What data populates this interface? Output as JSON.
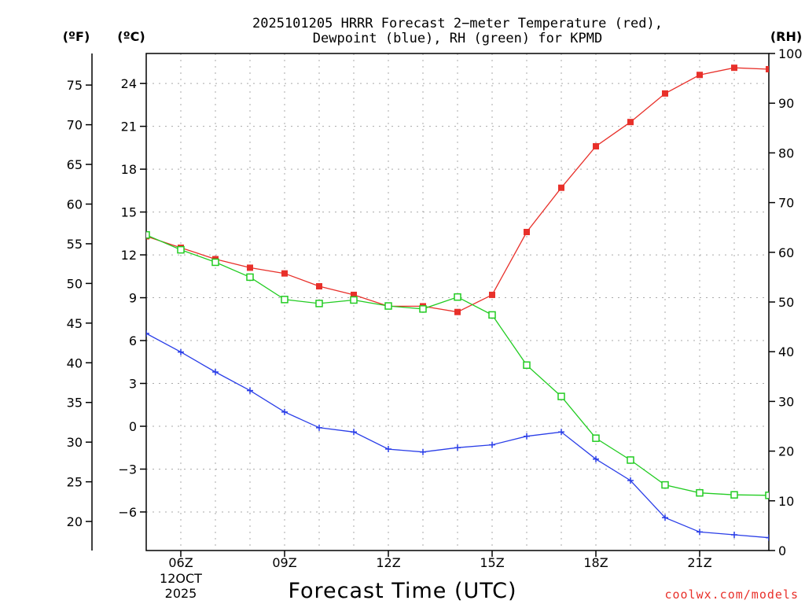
{
  "title_line1": "2025101205 HRRR Forecast 2−meter Temperature (red),",
  "title_line2": "Dewpoint (blue), RH (green) for KPMD",
  "units": {
    "f": "(ºF)",
    "c": "(ºC)",
    "rh": "(RH)"
  },
  "xlabel": "Forecast Time (UTC)",
  "credit": "coolwx.com/models",
  "colors": {
    "temperature": "#e8302a",
    "dewpoint": "#2a3ee8",
    "rh": "#22cc22",
    "axis": "#000000",
    "grid": "#aaaaaa"
  },
  "chart_data": {
    "type": "line",
    "x": [
      5,
      6,
      7,
      8,
      9,
      10,
      11,
      12,
      13,
      14,
      15,
      16,
      17,
      18,
      19,
      20,
      21,
      22,
      23
    ],
    "xlim": [
      5,
      23
    ],
    "x_ticks": [
      {
        "x": 6,
        "label": "06Z",
        "sub1": "12OCT",
        "sub2": "2025"
      },
      {
        "x": 9,
        "label": "09Z"
      },
      {
        "x": 12,
        "label": "12Z"
      },
      {
        "x": 15,
        "label": "15Z"
      },
      {
        "x": 18,
        "label": "18Z"
      },
      {
        "x": 21,
        "label": "21Z"
      }
    ],
    "ylim_c": [
      -8.7,
      26.1
    ],
    "c_ticks": [
      24,
      21,
      18,
      15,
      12,
      9,
      6,
      3,
      0,
      -3,
      -6
    ],
    "c_tick_labels": [
      "24",
      "21",
      "18",
      "15",
      "12",
      "9",
      "6",
      "3",
      "0",
      "−3",
      "−6"
    ],
    "f_ticks": [
      75,
      70,
      65,
      60,
      55,
      50,
      45,
      40,
      35,
      30,
      25,
      20
    ],
    "f_tick_labels": [
      "75",
      "70",
      "65",
      "60",
      "55",
      "50",
      "45",
      "40",
      "35",
      "30",
      "25",
      "20"
    ],
    "ylim_rh": [
      0,
      100
    ],
    "rh_ticks": [
      100,
      90,
      80,
      70,
      60,
      50,
      40,
      30,
      20,
      10,
      0
    ],
    "rh_tick_labels": [
      "100",
      "90",
      "80",
      "70",
      "60",
      "50",
      "40",
      "30",
      "20",
      "10",
      "0"
    ],
    "series": [
      {
        "name": "Temperature",
        "unit": "C",
        "marker": "filled-square",
        "values": [
          13.3,
          12.5,
          11.7,
          11.1,
          10.7,
          9.8,
          9.2,
          8.4,
          8.4,
          8.0,
          9.2,
          13.6,
          16.7,
          19.6,
          21.3,
          23.3,
          24.6,
          25.1,
          25.0
        ]
      },
      {
        "name": "Dewpoint",
        "unit": "C",
        "marker": "plus",
        "values": [
          6.5,
          5.2,
          3.8,
          2.5,
          1.0,
          -0.1,
          -0.4,
          -1.6,
          -1.8,
          -1.5,
          -1.3,
          -0.7,
          -0.4,
          -2.3,
          -3.8,
          -6.4,
          -7.4,
          -7.6,
          -7.8
        ]
      },
      {
        "name": "RH",
        "unit": "%",
        "marker": "open-square",
        "values": [
          63.5,
          60.5,
          58.0,
          55.0,
          50.5,
          49.7,
          50.4,
          49.2,
          48.6,
          51.0,
          47.4,
          37.3,
          31.0,
          22.6,
          18.2,
          13.2,
          11.6,
          11.2,
          11.1
        ]
      }
    ]
  }
}
